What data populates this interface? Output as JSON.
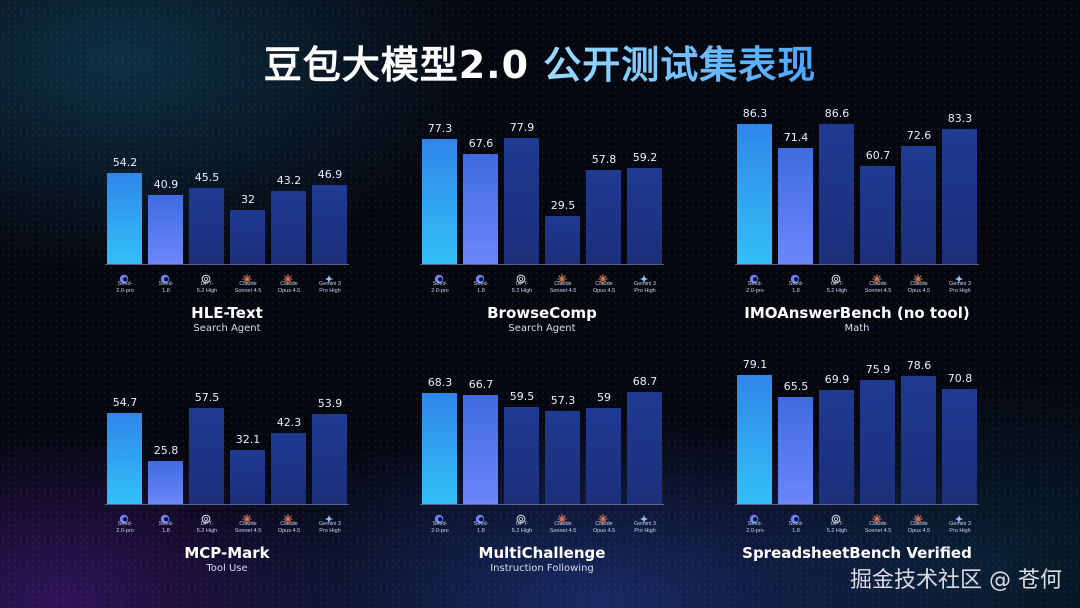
{
  "header": {
    "title_prefix": "豆包大模型2.0 ",
    "title_highlight": "公开测试集表现"
  },
  "models": [
    {
      "line1": "Seed-",
      "line2": "2.0-pro",
      "icon": "seed-icon"
    },
    {
      "line1": "Seed-",
      "line2": "1.8",
      "icon": "seed-icon"
    },
    {
      "line1": "GPT-",
      "line2": "5.2 High",
      "icon": "openai-icon"
    },
    {
      "line1": "Claude",
      "line2": "Sonnet 4.5",
      "icon": "claude-icon"
    },
    {
      "line1": "Claude",
      "line2": "Opus 4.5",
      "icon": "claude-icon"
    },
    {
      "line1": "Gemini 3",
      "line2": "Pro High",
      "icon": "gemini-icon"
    }
  ],
  "colors": {
    "seed_pro": "#33b5f5",
    "seed_18": "#5f7ef5",
    "others": "#1e3484",
    "background": "#05070f"
  },
  "watermark": "掘金技术社区 @ 苍何",
  "chart_data": [
    {
      "type": "bar",
      "title": "HLE-Text",
      "subtitle": "Search Agent",
      "categories": [
        "Seed-2.0-pro",
        "Seed-1.8",
        "GPT-5.2 High",
        "Claude Sonnet 4.5",
        "Claude Opus 4.5",
        "Gemini 3 Pro High"
      ],
      "values": [
        54.2,
        40.9,
        45.5,
        32,
        43.2,
        46.9
      ],
      "labels": [
        "54.2",
        "40.9",
        "45.5",
        "32",
        "43.2",
        "46.9"
      ]
    },
    {
      "type": "bar",
      "title": "BrowseComp",
      "subtitle": "Search Agent",
      "categories": [
        "Seed-2.0-pro",
        "Seed-1.8",
        "GPT-5.2 High",
        "Claude Sonnet 4.5",
        "Claude Opus 4.5",
        "Gemini 3 Pro High"
      ],
      "values": [
        77.3,
        67.6,
        77.9,
        29.5,
        57.8,
        59.2
      ],
      "labels": [
        "77.3",
        "67.6",
        "77.9",
        "29.5",
        "57.8",
        "59.2"
      ]
    },
    {
      "type": "bar",
      "title": "IMOAnswerBench (no tool)",
      "subtitle": "Math",
      "categories": [
        "Seed-2.0-pro",
        "Seed-1.8",
        "GPT-5.2 High",
        "Claude Sonnet 4.5",
        "Claude Opus 4.5",
        "Gemini 3 Pro High"
      ],
      "values": [
        86.3,
        71.4,
        86.6,
        60.7,
        72.6,
        83.3
      ],
      "labels": [
        "86.3",
        "71.4",
        "86.6",
        "60.7",
        "72.6",
        "83.3"
      ]
    },
    {
      "type": "bar",
      "title": "MCP-Mark",
      "subtitle": "Tool Use",
      "categories": [
        "Seed-2.0-pro",
        "Seed-1.8",
        "GPT-5.2 High",
        "Claude Sonnet 4.5",
        "Claude Opus 4.5",
        "Gemini 3 Pro High"
      ],
      "values": [
        54.7,
        25.8,
        57.5,
        32.1,
        42.3,
        53.9
      ],
      "labels": [
        "54.7",
        "25.8",
        "57.5",
        "32.1",
        "42.3",
        "53.9"
      ]
    },
    {
      "type": "bar",
      "title": "MultiChallenge",
      "subtitle": "Instruction Following",
      "categories": [
        "Seed-2.0-pro",
        "Seed-1.8",
        "GPT-5.2 High",
        "Claude Sonnet 4.5",
        "Claude Opus 4.5",
        "Gemini 3 Pro High"
      ],
      "values": [
        68.3,
        66.7,
        59.5,
        57.3,
        59,
        68.7
      ],
      "labels": [
        "68.3",
        "66.7",
        "59.5",
        "57.3",
        "59",
        "68.7"
      ]
    },
    {
      "type": "bar",
      "title": "SpreadsheetBench Verified",
      "subtitle": "",
      "categories": [
        "Seed-2.0-pro",
        "Seed-1.8",
        "GPT-5.2 High",
        "Claude Sonnet 4.5",
        "Claude Opus 4.5",
        "Gemini 3 Pro High"
      ],
      "values": [
        79.1,
        65.5,
        69.9,
        75.9,
        78.6,
        70.8
      ],
      "labels": [
        "79.1",
        "65.5",
        "69.9",
        "75.9",
        "78.6",
        "70.8"
      ]
    }
  ]
}
